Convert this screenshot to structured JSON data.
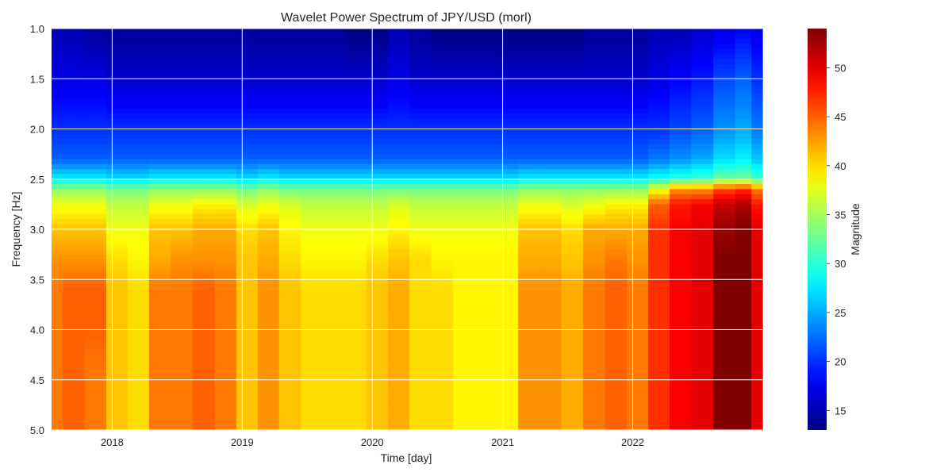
{
  "chart_data": {
    "type": "heatmap",
    "title": "Wavelet Power Spectrum of JPY/USD (morl)",
    "xlabel": "Time [day]",
    "ylabel": "Frequency [Hz]",
    "x_range": [
      "2017-07-15",
      "2022-12-31"
    ],
    "x_ticks": [
      "2018",
      "2019",
      "2020",
      "2021",
      "2022"
    ],
    "y_range": [
      1.0,
      5.0
    ],
    "y_inverted": true,
    "y_ticks": [
      "1.0",
      "1.5",
      "2.0",
      "2.5",
      "3.0",
      "3.5",
      "4.0",
      "4.5",
      "5.0"
    ],
    "colorbar": {
      "label": "Magnitude",
      "colormap": "jet",
      "range": [
        13,
        54
      ],
      "ticks": [
        "15",
        "20",
        "25",
        "30",
        "35",
        "40",
        "45",
        "50"
      ]
    },
    "grid": true,
    "frequencies": [
      1.0,
      1.5,
      2.0,
      2.3,
      2.5,
      2.6,
      2.75,
      3.0,
      3.3,
      3.6,
      4.0,
      4.5,
      5.0
    ],
    "series": [
      {
        "time": "2017-07",
        "values": [
          15,
          17,
          20,
          22,
          28,
          34,
          38,
          41,
          43,
          44,
          44,
          44,
          44
        ]
      },
      {
        "time": "2017-09",
        "values": [
          15,
          17,
          20,
          22,
          28,
          34,
          38,
          41,
          43,
          45,
          45,
          45,
          45
        ]
      },
      {
        "time": "2017-11",
        "values": [
          14,
          17,
          20,
          22,
          28,
          34,
          38,
          41,
          43,
          45,
          45,
          44,
          44
        ]
      },
      {
        "time": "2018-01",
        "values": [
          14,
          16,
          20,
          22,
          27,
          33,
          36,
          38,
          40,
          41,
          41,
          41,
          41
        ]
      },
      {
        "time": "2018-03",
        "values": [
          14,
          16,
          20,
          22,
          27,
          33,
          36,
          38,
          39,
          40,
          40,
          40,
          40
        ]
      },
      {
        "time": "2018-05",
        "values": [
          14,
          16,
          20,
          22,
          28,
          34,
          38,
          41,
          42,
          44,
          44,
          44,
          44
        ]
      },
      {
        "time": "2018-07",
        "values": [
          14,
          16,
          20,
          22,
          28,
          34,
          38,
          41,
          43,
          44,
          44,
          44,
          44
        ]
      },
      {
        "time": "2018-09",
        "values": [
          14,
          16,
          20,
          22,
          28,
          34,
          39,
          42,
          43,
          45,
          45,
          45,
          45
        ]
      },
      {
        "time": "2018-11",
        "values": [
          14,
          16,
          20,
          22,
          28,
          34,
          39,
          42,
          43,
          44,
          44,
          44,
          44
        ]
      },
      {
        "time": "2019-01",
        "values": [
          14,
          16,
          20,
          22,
          27,
          33,
          37,
          40,
          41,
          41,
          41,
          41,
          41
        ]
      },
      {
        "time": "2019-03",
        "values": [
          14,
          16,
          20,
          22,
          28,
          34,
          38,
          41,
          42,
          43,
          43,
          43,
          43
        ]
      },
      {
        "time": "2019-05",
        "values": [
          14,
          16,
          20,
          22,
          27,
          33,
          37,
          39,
          40,
          41,
          41,
          41,
          41
        ]
      },
      {
        "time": "2019-07",
        "values": [
          14,
          16,
          20,
          22,
          27,
          33,
          36,
          38,
          39,
          40,
          40,
          40,
          40
        ]
      },
      {
        "time": "2019-09",
        "values": [
          14,
          16,
          20,
          22,
          27,
          33,
          36,
          38,
          39,
          40,
          40,
          40,
          40
        ]
      },
      {
        "time": "2019-11",
        "values": [
          13,
          16,
          20,
          22,
          27,
          33,
          36,
          38,
          39,
          40,
          40,
          40,
          40
        ]
      },
      {
        "time": "2020-01",
        "values": [
          13,
          16,
          20,
          22,
          27,
          33,
          36,
          38,
          40,
          41,
          41,
          41,
          41
        ]
      },
      {
        "time": "2020-03",
        "values": [
          15,
          17,
          20,
          22,
          27,
          33,
          37,
          39,
          41,
          42,
          42,
          42,
          42
        ]
      },
      {
        "time": "2020-05",
        "values": [
          14,
          16,
          20,
          22,
          27,
          33,
          36,
          38,
          40,
          40,
          40,
          40,
          40
        ]
      },
      {
        "time": "2020-07",
        "values": [
          13,
          16,
          20,
          22,
          27,
          33,
          36,
          38,
          39,
          40,
          40,
          40,
          40
        ]
      },
      {
        "time": "2020-09",
        "values": [
          13,
          16,
          20,
          22,
          27,
          33,
          36,
          38,
          39,
          39,
          39,
          39,
          39
        ]
      },
      {
        "time": "2020-11",
        "values": [
          13,
          16,
          20,
          22,
          27,
          33,
          36,
          38,
          39,
          39,
          39,
          39,
          39
        ]
      },
      {
        "time": "2021-01",
        "values": [
          13,
          16,
          20,
          22,
          27,
          33,
          36,
          38,
          39,
          39,
          39,
          39,
          39
        ]
      },
      {
        "time": "2021-03",
        "values": [
          13,
          16,
          20,
          22,
          28,
          34,
          38,
          41,
          42,
          43,
          43,
          43,
          43
        ]
      },
      {
        "time": "2021-05",
        "values": [
          13,
          16,
          20,
          22,
          28,
          34,
          38,
          41,
          42,
          43,
          43,
          43,
          43
        ]
      },
      {
        "time": "2021-07",
        "values": [
          13,
          16,
          20,
          22,
          28,
          34,
          37,
          40,
          41,
          42,
          42,
          42,
          42
        ]
      },
      {
        "time": "2021-09",
        "values": [
          14,
          16,
          20,
          22,
          28,
          34,
          38,
          42,
          43,
          44,
          44,
          44,
          44
        ]
      },
      {
        "time": "2021-11",
        "values": [
          14,
          16,
          20,
          22,
          28,
          34,
          39,
          42,
          44,
          45,
          45,
          45,
          45
        ]
      },
      {
        "time": "2022-01",
        "values": [
          14,
          16,
          20,
          22,
          28,
          34,
          39,
          42,
          43,
          44,
          44,
          44,
          44
        ]
      },
      {
        "time": "2022-03",
        "values": [
          15,
          17,
          20,
          23,
          29,
          38,
          45,
          47,
          47,
          47,
          47,
          47,
          47
        ]
      },
      {
        "time": "2022-05",
        "values": [
          15,
          18,
          21,
          24,
          30,
          43,
          48,
          49,
          49,
          49,
          49,
          49,
          49
        ]
      },
      {
        "time": "2022-07",
        "values": [
          16,
          19,
          22,
          25,
          31,
          43,
          49,
          50,
          50,
          50,
          50,
          50,
          50
        ]
      },
      {
        "time": "2022-09",
        "values": [
          17,
          21,
          24,
          27,
          33,
          46,
          51,
          53,
          54,
          54,
          54,
          54,
          54
        ]
      },
      {
        "time": "2022-11",
        "values": [
          18,
          22,
          25,
          28,
          33,
          47,
          52,
          54,
          54,
          54,
          54,
          54,
          54
        ]
      },
      {
        "time": "2022-12",
        "values": [
          17,
          20,
          23,
          26,
          31,
          44,
          48,
          50,
          50,
          50,
          50,
          50,
          50
        ]
      }
    ]
  }
}
